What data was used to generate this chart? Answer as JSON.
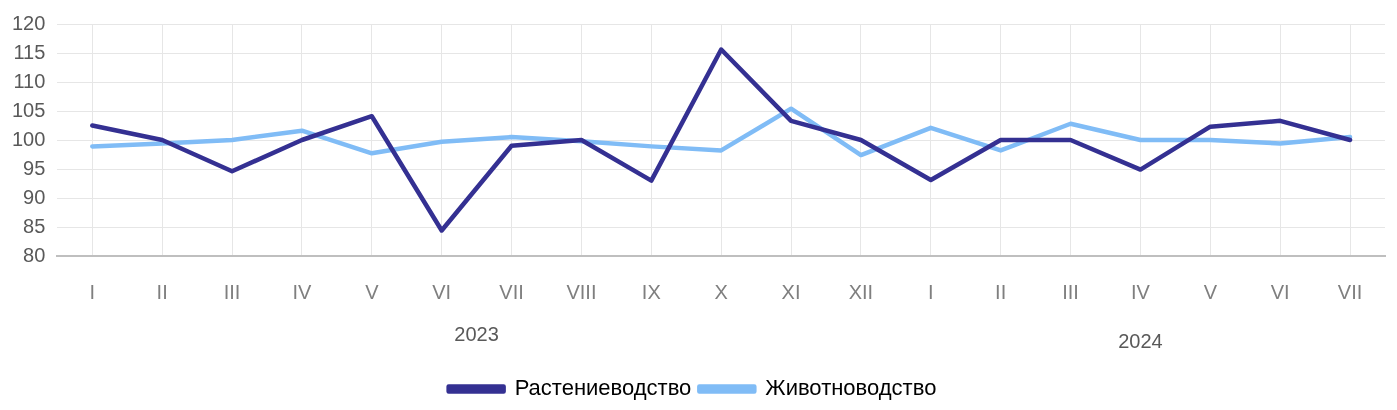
{
  "chart_data": {
    "type": "line",
    "categories": [
      "I",
      "II",
      "III",
      "IV",
      "V",
      "VI",
      "VII",
      "VIII",
      "IX",
      "X",
      "XI",
      "XII",
      "I",
      "II",
      "III",
      "IV",
      "V",
      "VI",
      "VII"
    ],
    "series": [
      {
        "name": "Растениеводство",
        "color": "#343092",
        "values": [
          102.5,
          100,
          94.6,
          100,
          104.1,
          84.4,
          99,
          100,
          93,
          115.6,
          103.3,
          100,
          93.1,
          100,
          100,
          94.9,
          102.3,
          103.3,
          100
        ]
      },
      {
        "name": "Животноводство",
        "color": "#80bcf6",
        "values": [
          98.9,
          99.4,
          100,
          101.6,
          97.7,
          99.7,
          100.5,
          99.8,
          98.9,
          98.2,
          105.4,
          97.4,
          102.1,
          98.2,
          102.8,
          100,
          100,
          99.4,
          100.5
        ]
      }
    ],
    "ylim": [
      80,
      120
    ],
    "yticks": [
      80,
      85,
      90,
      95,
      100,
      105,
      110,
      115,
      120
    ],
    "grid": true,
    "legend": "bottom",
    "marker": "none",
    "line_style": "solid",
    "annotations": [
      "2023",
      "2024"
    ]
  }
}
